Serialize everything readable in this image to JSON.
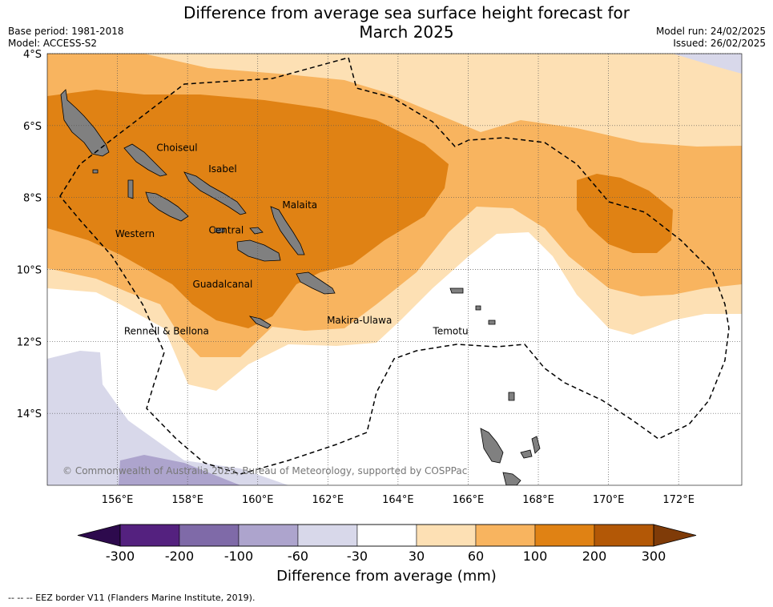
{
  "title": "Difference from average sea surface height forecast for March 2025",
  "title_line1": "Difference from average sea surface height forecast for",
  "title_line2": "March 2025",
  "meta": {
    "base_period": "Base period: 1981-2018",
    "model": "Model: ACCESS-S2",
    "model_run": "Model run: 24/02/2025",
    "issued": "Issued: 26/02/2025"
  },
  "map": {
    "lon_ticks": [
      "156°E",
      "158°E",
      "160°E",
      "162°E",
      "164°E",
      "166°E",
      "168°E",
      "170°E",
      "172°E"
    ],
    "lat_ticks": [
      "4°S",
      "6°S",
      "8°S",
      "10°S",
      "12°S",
      "14°S"
    ],
    "extent": {
      "lon_min": 154.0,
      "lon_max": 173.8,
      "lat_min": -16.0,
      "lat_max": -4.0
    },
    "grid": true,
    "place_labels": [
      {
        "name": "Choiseul",
        "lon": 157.7,
        "lat": -6.7
      },
      {
        "name": "Isabel",
        "lon": 159.0,
        "lat": -7.3
      },
      {
        "name": "Malaita",
        "lon": 161.2,
        "lat": -8.3
      },
      {
        "name": "Western",
        "lon": 156.5,
        "lat": -9.1
      },
      {
        "name": "Central",
        "lon": 159.1,
        "lat": -9.0
      },
      {
        "name": "Guadalcanal",
        "lon": 159.0,
        "lat": -10.5
      },
      {
        "name": "Rennell & Bellona",
        "lon": 157.4,
        "lat": -11.8
      },
      {
        "name": "Makira-Ulawa",
        "lon": 162.9,
        "lat": -11.5
      },
      {
        "name": "Temotu",
        "lon": 165.5,
        "lat": -11.8
      }
    ],
    "copyright": "© Commonwealth of Australia 2025, Bureau of Meteorology, supported by COSPPac"
  },
  "colorbar": {
    "labels": [
      "-300",
      "-200",
      "-100",
      "-60",
      "-30",
      "30",
      "60",
      "100",
      "200",
      "300"
    ],
    "colors": [
      "#2d0a4d",
      "#54217f",
      "#7f6aa8",
      "#ada4cd",
      "#d8d8ea",
      "#ffffff",
      "#fde0b4",
      "#f8b45f",
      "#e08214",
      "#b35806",
      "#7f3b08"
    ],
    "title": "Difference from average (mm)"
  },
  "footnote": "--  --  -- EEZ border V11 (Flanders Marine Institute, 2019)."
}
